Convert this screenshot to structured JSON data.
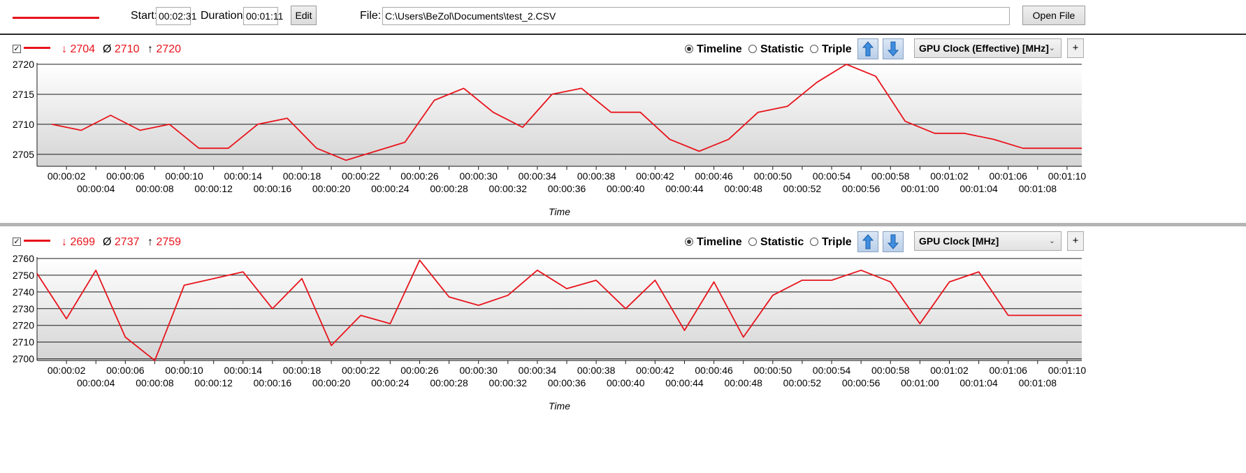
{
  "toolbar": {
    "start_label": "Start:",
    "start_value": "00:02:31",
    "duration_label": "Duration:",
    "duration_value": "00:01:11",
    "edit_label": "Edit",
    "file_label": "File:",
    "file_path": "C:\\Users\\BeZol\\Documents\\test_2.CSV",
    "open_label": "Open File"
  },
  "colors": {
    "series": "#e8141c",
    "accent": "#2a6fc9"
  },
  "panels": [
    {
      "checked": true,
      "min": "2704",
      "avg": "2710",
      "max": "2720",
      "min_symbol": "↓",
      "avg_symbol": "Ø",
      "max_symbol": "↑",
      "modes": [
        "Timeline",
        "Statistic",
        "Triple"
      ],
      "selected_mode": "Timeline",
      "sensor": "GPU Clock (Effective) [MHz]",
      "plus": "+"
    },
    {
      "checked": true,
      "min": "2699",
      "avg": "2737",
      "max": "2759",
      "min_symbol": "↓",
      "avg_symbol": "Ø",
      "max_symbol": "↑",
      "modes": [
        "Timeline",
        "Statistic",
        "Triple"
      ],
      "selected_mode": "Timeline",
      "sensor": "GPU Clock [MHz]",
      "plus": "+"
    }
  ],
  "chart_data": [
    {
      "type": "line",
      "xlabel": "Time",
      "ylabel": "",
      "ylim": [
        2703,
        2720
      ],
      "yticks": [
        2705,
        2710,
        2715,
        2720
      ],
      "xlim": [
        0,
        71
      ],
      "xtick_values": [
        2,
        4,
        6,
        8,
        10,
        12,
        14,
        16,
        18,
        20,
        22,
        24,
        26,
        28,
        30,
        32,
        34,
        36,
        38,
        40,
        42,
        44,
        46,
        48,
        50,
        52,
        54,
        56,
        58,
        60,
        62,
        64,
        66,
        68,
        70
      ],
      "xtick_labels": [
        "00:00:02",
        "00:00:04",
        "00:00:06",
        "00:00:08",
        "00:00:10",
        "00:00:12",
        "00:00:14",
        "00:00:16",
        "00:00:18",
        "00:00:20",
        "00:00:22",
        "00:00:24",
        "00:00:26",
        "00:00:28",
        "00:00:30",
        "00:00:32",
        "00:00:34",
        "00:00:36",
        "00:00:38",
        "00:00:40",
        "00:00:42",
        "00:00:44",
        "00:00:46",
        "00:00:48",
        "00:00:50",
        "00:00:52",
        "00:00:54",
        "00:00:56",
        "00:00:58",
        "00:01:00",
        "00:01:02",
        "00:01:04",
        "00:01:06",
        "00:01:08",
        "00:01:10"
      ],
      "grid": true,
      "series": [
        {
          "x": [
            1,
            3,
            5,
            7,
            9,
            11,
            13,
            15,
            17,
            19,
            21,
            23,
            25,
            27,
            29,
            31,
            33,
            35,
            37,
            39,
            41,
            43,
            45,
            47,
            49,
            51,
            53,
            55,
            57,
            59,
            61,
            63,
            65,
            67,
            69,
            71
          ],
          "values": [
            2710,
            2709,
            2711.5,
            2709,
            2710,
            2706,
            2706,
            2710,
            2711,
            2706,
            2704,
            2705.5,
            2707,
            2714,
            2716,
            2712,
            2709.5,
            2715,
            2716,
            2712,
            2712,
            2707.5,
            2705.5,
            2707.5,
            2712,
            2713,
            2717,
            2720,
            2718,
            2710.5,
            2708.5,
            2708.5,
            2707.5,
            2706,
            2706,
            2706
          ]
        }
      ]
    },
    {
      "type": "line",
      "xlabel": "Time",
      "ylabel": "",
      "ylim": [
        2699,
        2760
      ],
      "yticks": [
        2700,
        2710,
        2720,
        2730,
        2740,
        2750,
        2760
      ],
      "xlim": [
        0,
        71
      ],
      "xtick_values": [
        2,
        4,
        6,
        8,
        10,
        12,
        14,
        16,
        18,
        20,
        22,
        24,
        26,
        28,
        30,
        32,
        34,
        36,
        38,
        40,
        42,
        44,
        46,
        48,
        50,
        52,
        54,
        56,
        58,
        60,
        62,
        64,
        66,
        68,
        70
      ],
      "xtick_labels": [
        "00:00:02",
        "00:00:04",
        "00:00:06",
        "00:00:08",
        "00:00:10",
        "00:00:12",
        "00:00:14",
        "00:00:16",
        "00:00:18",
        "00:00:20",
        "00:00:22",
        "00:00:24",
        "00:00:26",
        "00:00:28",
        "00:00:30",
        "00:00:32",
        "00:00:34",
        "00:00:36",
        "00:00:38",
        "00:00:40",
        "00:00:42",
        "00:00:44",
        "00:00:46",
        "00:00:48",
        "00:00:50",
        "00:00:52",
        "00:00:54",
        "00:00:56",
        "00:00:58",
        "00:01:00",
        "00:01:02",
        "00:01:04",
        "00:01:06",
        "00:01:08",
        "00:01:10"
      ],
      "grid": true,
      "series": [
        {
          "x": [
            0,
            2,
            4,
            6,
            8,
            10,
            12,
            14,
            16,
            18,
            20,
            22,
            24,
            26,
            28,
            30,
            32,
            34,
            36,
            38,
            40,
            42,
            44,
            46,
            48,
            50,
            52,
            54,
            56,
            58,
            60,
            62,
            64,
            66,
            68,
            70,
            71
          ],
          "values": [
            2751,
            2724,
            2753,
            2713,
            2699,
            2744,
            2748,
            2752,
            2730,
            2748,
            2708,
            2726,
            2721,
            2759,
            2737,
            2732,
            2738,
            2753,
            2742,
            2747,
            2730,
            2747,
            2717,
            2746,
            2713,
            2738,
            2747,
            2747,
            2753,
            2746,
            2721,
            2746,
            2752,
            2726,
            2726,
            2726,
            2726
          ]
        }
      ]
    }
  ]
}
